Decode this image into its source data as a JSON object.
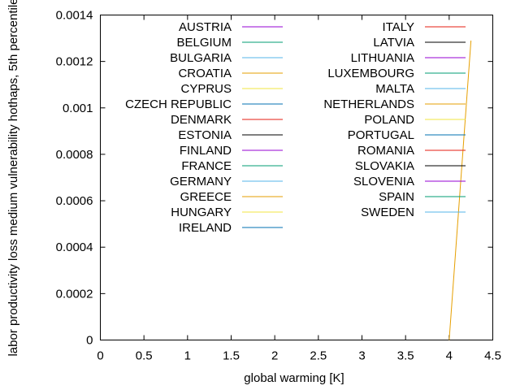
{
  "chart_data": {
    "type": "line",
    "title": "",
    "xlabel": "global warming [K]",
    "ylabel": "labor productivity loss medium vulnerability hothaps, 5th percentile",
    "xlim": [
      0,
      4.5
    ],
    "ylim": [
      0,
      0.0014
    ],
    "grid": false,
    "legend_placement": "top, two columns",
    "x_ticks": [
      "0",
      "0.5",
      "1",
      "1.5",
      "2",
      "2.5",
      "3",
      "3.5",
      "4",
      "4.5"
    ],
    "y_ticks": [
      "0",
      "0.0002",
      "0.0004",
      "0.0006",
      "0.0008",
      "0.001",
      "0.0012",
      "0.0014"
    ],
    "series": [
      {
        "name": "AUSTRIA",
        "color": "#9400d3",
        "x": [],
        "y": []
      },
      {
        "name": "BELGIUM",
        "color": "#009e73",
        "x": [],
        "y": []
      },
      {
        "name": "BULGARIA",
        "color": "#56b4e9",
        "x": [],
        "y": []
      },
      {
        "name": "CROATIA",
        "color": "#e69f00",
        "x": [],
        "y": []
      },
      {
        "name": "CYPRUS",
        "color": "#f0e442",
        "x": [],
        "y": []
      },
      {
        "name": "CZECH REPUBLIC",
        "color": "#0072b2",
        "x": [],
        "y": []
      },
      {
        "name": "DENMARK",
        "color": "#e51e10",
        "x": [],
        "y": []
      },
      {
        "name": "ESTONIA",
        "color": "#000000",
        "x": [],
        "y": []
      },
      {
        "name": "FINLAND",
        "color": "#9400d3",
        "x": [],
        "y": []
      },
      {
        "name": "FRANCE",
        "color": "#009e73",
        "x": [],
        "y": []
      },
      {
        "name": "GERMANY",
        "color": "#56b4e9",
        "x": [],
        "y": []
      },
      {
        "name": "GREECE",
        "color": "#e69f00",
        "x": [
          4.0,
          4.25
        ],
        "y": [
          0,
          0.00129
        ]
      },
      {
        "name": "HUNGARY",
        "color": "#f0e442",
        "x": [],
        "y": []
      },
      {
        "name": "IRELAND",
        "color": "#0072b2",
        "x": [],
        "y": []
      },
      {
        "name": "ITALY",
        "color": "#e51e10",
        "x": [],
        "y": []
      },
      {
        "name": "LATVIA",
        "color": "#000000",
        "x": [],
        "y": []
      },
      {
        "name": "LITHUANIA",
        "color": "#9400d3",
        "x": [],
        "y": []
      },
      {
        "name": "LUXEMBOURG",
        "color": "#009e73",
        "x": [],
        "y": []
      },
      {
        "name": "MALTA",
        "color": "#56b4e9",
        "x": [],
        "y": []
      },
      {
        "name": "NETHERLANDS",
        "color": "#e69f00",
        "x": [],
        "y": []
      },
      {
        "name": "POLAND",
        "color": "#f0e442",
        "x": [],
        "y": []
      },
      {
        "name": "PORTUGAL",
        "color": "#0072b2",
        "x": [],
        "y": []
      },
      {
        "name": "ROMANIA",
        "color": "#e51e10",
        "x": [],
        "y": []
      },
      {
        "name": "SLOVAKIA",
        "color": "#000000",
        "x": [],
        "y": []
      },
      {
        "name": "SLOVENIA",
        "color": "#9400d3",
        "x": [],
        "y": []
      },
      {
        "name": "SPAIN",
        "color": "#009e73",
        "x": [],
        "y": []
      },
      {
        "name": "SWEDEN",
        "color": "#56b4e9",
        "x": [],
        "y": []
      }
    ]
  }
}
